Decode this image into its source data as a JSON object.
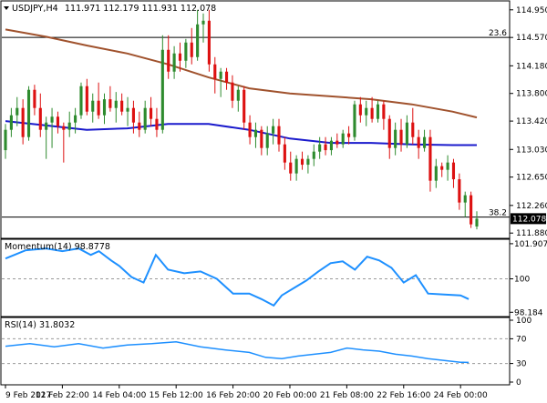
{
  "header": {
    "symbol": "USDJPY,H4",
    "ohlc": "111.971 112.179 111.931 112.078"
  },
  "colors": {
    "bull": "#2e8b2e",
    "bear": "#dd1111",
    "sma_fast": "#1a1acc",
    "sma_slow": "#a0522d",
    "momentum": "#1e90ff",
    "rsi": "#1e90ff",
    "level": "#000000",
    "grid": "#999999"
  },
  "chart_data": [
    {
      "type": "candlestick",
      "panel": "price",
      "y_ticks": [
        "114.950",
        "114.570",
        "114.180",
        "113.800",
        "113.420",
        "113.030",
        "112.650",
        "112.260",
        "111.880"
      ],
      "ylim": [
        111.82,
        115.06
      ],
      "current_price": "112.078",
      "x_tick_labels": [
        "9 Feb 2017",
        "12 Feb 22:00",
        "14 Feb 04:00",
        "15 Feb 12:00",
        "16 Feb 20:00",
        "20 Feb 00:00",
        "21 Feb 08:00",
        "22 Feb 16:00",
        "24 Feb 00:00"
      ],
      "x_tick_positions": [
        0,
        14,
        28,
        42,
        56,
        70,
        84,
        98,
        112
      ],
      "levels": [
        {
          "label": "23.6",
          "value": 114.57
        },
        {
          "label": "38.2",
          "value": 112.1
        }
      ],
      "candles": [
        {
          "o": 113.02,
          "h": 113.38,
          "l": 112.9,
          "c": 113.3
        },
        {
          "o": 113.3,
          "h": 113.6,
          "l": 113.2,
          "c": 113.5
        },
        {
          "o": 113.5,
          "h": 113.75,
          "l": 113.35,
          "c": 113.6
        },
        {
          "o": 113.6,
          "h": 113.72,
          "l": 113.1,
          "c": 113.2
        },
        {
          "o": 113.2,
          "h": 113.9,
          "l": 113.15,
          "c": 113.85
        },
        {
          "o": 113.85,
          "h": 113.92,
          "l": 113.5,
          "c": 113.6
        },
        {
          "o": 113.6,
          "h": 113.8,
          "l": 113.2,
          "c": 113.3
        },
        {
          "o": 113.3,
          "h": 113.48,
          "l": 112.9,
          "c": 113.4
        },
        {
          "o": 113.4,
          "h": 113.6,
          "l": 113.05,
          "c": 113.48
        },
        {
          "o": 113.48,
          "h": 113.55,
          "l": 113.25,
          "c": 113.35
        },
        {
          "o": 113.35,
          "h": 113.4,
          "l": 112.85,
          "c": 113.3
        },
        {
          "o": 113.3,
          "h": 113.55,
          "l": 113.2,
          "c": 113.4
        },
        {
          "o": 113.4,
          "h": 113.6,
          "l": 113.25,
          "c": 113.5
        },
        {
          "o": 113.5,
          "h": 113.95,
          "l": 113.45,
          "c": 113.9
        },
        {
          "o": 113.9,
          "h": 114.0,
          "l": 113.5,
          "c": 113.55
        },
        {
          "o": 113.55,
          "h": 113.8,
          "l": 113.4,
          "c": 113.7
        },
        {
          "o": 113.7,
          "h": 113.95,
          "l": 113.45,
          "c": 113.5
        },
        {
          "o": 113.5,
          "h": 113.8,
          "l": 113.38,
          "c": 113.72
        },
        {
          "o": 113.72,
          "h": 113.9,
          "l": 113.55,
          "c": 113.6
        },
        {
          "o": 113.6,
          "h": 113.82,
          "l": 113.4,
          "c": 113.7
        },
        {
          "o": 113.7,
          "h": 113.8,
          "l": 113.5,
          "c": 113.55
        },
        {
          "o": 113.55,
          "h": 113.75,
          "l": 113.35,
          "c": 113.6
        },
        {
          "o": 113.6,
          "h": 113.7,
          "l": 113.25,
          "c": 113.4
        },
        {
          "o": 113.4,
          "h": 113.55,
          "l": 113.2,
          "c": 113.3
        },
        {
          "o": 113.3,
          "h": 113.7,
          "l": 113.25,
          "c": 113.6
        },
        {
          "o": 113.6,
          "h": 113.75,
          "l": 113.35,
          "c": 113.45
        },
        {
          "o": 113.45,
          "h": 113.6,
          "l": 113.2,
          "c": 113.3
        },
        {
          "o": 113.3,
          "h": 114.6,
          "l": 113.25,
          "c": 114.4
        },
        {
          "o": 114.4,
          "h": 114.6,
          "l": 114.0,
          "c": 114.1
        },
        {
          "o": 114.1,
          "h": 114.45,
          "l": 114.0,
          "c": 114.35
        },
        {
          "o": 114.35,
          "h": 114.5,
          "l": 114.1,
          "c": 114.25
        },
        {
          "o": 114.25,
          "h": 114.55,
          "l": 114.15,
          "c": 114.5
        },
        {
          "o": 114.5,
          "h": 114.7,
          "l": 114.2,
          "c": 114.3
        },
        {
          "o": 114.3,
          "h": 114.95,
          "l": 114.25,
          "c": 114.75
        },
        {
          "o": 114.75,
          "h": 114.9,
          "l": 114.5,
          "c": 114.8
        },
        {
          "o": 114.8,
          "h": 114.95,
          "l": 114.1,
          "c": 114.2
        },
        {
          "o": 114.2,
          "h": 114.3,
          "l": 113.8,
          "c": 114.0
        },
        {
          "o": 114.0,
          "h": 114.15,
          "l": 113.75,
          "c": 114.1
        },
        {
          "o": 114.1,
          "h": 114.15,
          "l": 113.85,
          "c": 113.95
        },
        {
          "o": 113.95,
          "h": 114.05,
          "l": 113.6,
          "c": 113.7
        },
        {
          "o": 113.7,
          "h": 113.9,
          "l": 113.55,
          "c": 113.85
        },
        {
          "o": 113.85,
          "h": 113.9,
          "l": 113.3,
          "c": 113.4
        },
        {
          "o": 113.4,
          "h": 113.5,
          "l": 113.1,
          "c": 113.2
        },
        {
          "o": 113.2,
          "h": 113.4,
          "l": 113.05,
          "c": 113.3
        },
        {
          "o": 113.3,
          "h": 113.35,
          "l": 112.95,
          "c": 113.05
        },
        {
          "o": 113.05,
          "h": 113.35,
          "l": 112.95,
          "c": 113.25
        },
        {
          "o": 113.25,
          "h": 113.45,
          "l": 113.1,
          "c": 113.35
        },
        {
          "o": 113.35,
          "h": 113.45,
          "l": 113.0,
          "c": 113.1
        },
        {
          "o": 113.1,
          "h": 113.2,
          "l": 112.75,
          "c": 112.85
        },
        {
          "o": 112.85,
          "h": 113.0,
          "l": 112.6,
          "c": 112.7
        },
        {
          "o": 112.7,
          "h": 112.95,
          "l": 112.6,
          "c": 112.9
        },
        {
          "o": 112.9,
          "h": 113.0,
          "l": 112.75,
          "c": 112.82
        },
        {
          "o": 112.82,
          "h": 112.95,
          "l": 112.7,
          "c": 112.9
        },
        {
          "o": 112.9,
          "h": 113.1,
          "l": 112.8,
          "c": 113.0
        },
        {
          "o": 113.0,
          "h": 113.2,
          "l": 112.9,
          "c": 113.1
        },
        {
          "o": 113.1,
          "h": 113.2,
          "l": 112.95,
          "c": 113.02
        },
        {
          "o": 113.02,
          "h": 113.2,
          "l": 112.95,
          "c": 113.15
        },
        {
          "o": 113.15,
          "h": 113.25,
          "l": 113.05,
          "c": 113.1
        },
        {
          "o": 113.1,
          "h": 113.3,
          "l": 113.05,
          "c": 113.25
        },
        {
          "o": 113.25,
          "h": 113.35,
          "l": 113.1,
          "c": 113.2
        },
        {
          "o": 113.2,
          "h": 113.7,
          "l": 113.15,
          "c": 113.65
        },
        {
          "o": 113.65,
          "h": 113.75,
          "l": 113.4,
          "c": 113.5
        },
        {
          "o": 113.5,
          "h": 113.7,
          "l": 113.35,
          "c": 113.6
        },
        {
          "o": 113.6,
          "h": 113.75,
          "l": 113.4,
          "c": 113.45
        },
        {
          "o": 113.45,
          "h": 113.7,
          "l": 113.4,
          "c": 113.65
        },
        {
          "o": 113.65,
          "h": 113.7,
          "l": 113.3,
          "c": 113.45
        },
        {
          "o": 113.45,
          "h": 113.5,
          "l": 112.9,
          "c": 113.05
        },
        {
          "o": 113.05,
          "h": 113.4,
          "l": 112.95,
          "c": 113.3
        },
        {
          "o": 113.3,
          "h": 113.45,
          "l": 113.0,
          "c": 113.1
        },
        {
          "o": 113.1,
          "h": 113.5,
          "l": 113.05,
          "c": 113.4
        },
        {
          "o": 113.4,
          "h": 113.6,
          "l": 113.1,
          "c": 113.2
        },
        {
          "o": 113.2,
          "h": 113.3,
          "l": 112.9,
          "c": 113.05
        },
        {
          "o": 113.05,
          "h": 113.3,
          "l": 113.0,
          "c": 113.2
        },
        {
          "o": 113.2,
          "h": 113.3,
          "l": 112.45,
          "c": 112.6
        },
        {
          "o": 112.6,
          "h": 112.9,
          "l": 112.5,
          "c": 112.8
        },
        {
          "o": 112.8,
          "h": 112.85,
          "l": 112.65,
          "c": 112.75
        },
        {
          "o": 112.75,
          "h": 112.95,
          "l": 112.6,
          "c": 112.85
        },
        {
          "o": 112.85,
          "h": 112.9,
          "l": 112.5,
          "c": 112.62
        },
        {
          "o": 112.62,
          "h": 112.7,
          "l": 112.2,
          "c": 112.3
        },
        {
          "o": 112.3,
          "h": 112.45,
          "l": 112.1,
          "c": 112.4
        },
        {
          "o": 112.4,
          "h": 112.45,
          "l": 111.95,
          "c": 112.0
        },
        {
          "o": 111.971,
          "h": 112.179,
          "l": 111.931,
          "c": 112.078
        }
      ],
      "candle_x": [
        0,
        1,
        2,
        3,
        4,
        5,
        6,
        7,
        8,
        9,
        10,
        11,
        12,
        13,
        14,
        15,
        16,
        17,
        18,
        19,
        20,
        21,
        22,
        23,
        24,
        25,
        26,
        27,
        28,
        29,
        30,
        31,
        32,
        33,
        34,
        35,
        36,
        37,
        38,
        39,
        40,
        41,
        42,
        43,
        44,
        45,
        46,
        47,
        48,
        49,
        50,
        51,
        52,
        53,
        54,
        55,
        56,
        57,
        58,
        59,
        60,
        61,
        62,
        63,
        64,
        65,
        66,
        67,
        68,
        69,
        70,
        71,
        72,
        73,
        74,
        75,
        76,
        77,
        78,
        79,
        80,
        81
      ],
      "series": [
        {
          "kind": "sma_slow",
          "x": [
            0,
            10,
            20,
            30,
            40,
            50,
            60,
            70,
            80,
            90,
            100,
            110,
            116
          ],
          "values": [
            114.68,
            114.58,
            114.46,
            114.35,
            114.2,
            114.02,
            113.87,
            113.8,
            113.76,
            113.72,
            113.65,
            113.55,
            113.47
          ]
        },
        {
          "kind": "sma_fast",
          "x": [
            0,
            10,
            20,
            30,
            40,
            50,
            60,
            70,
            80,
            90,
            100,
            110,
            116
          ],
          "values": [
            113.42,
            113.36,
            113.3,
            113.32,
            113.38,
            113.38,
            113.3,
            113.18,
            113.12,
            113.12,
            113.1,
            113.09,
            113.09
          ]
        }
      ]
    },
    {
      "type": "line",
      "panel": "momentum",
      "label": "Momentum(14) 98.8778",
      "y_ticks": [
        "101.9073",
        "100",
        "98.184"
      ],
      "ylim": [
        98.0,
        102.1
      ],
      "reference": 100,
      "x": [
        0,
        5,
        10,
        14,
        18,
        21,
        23,
        26,
        28,
        31,
        34,
        37,
        40,
        44,
        48,
        52,
        56,
        60,
        63,
        66,
        68,
        71,
        74,
        77,
        80,
        83,
        86,
        89,
        92,
        95,
        98,
        101,
        104,
        108,
        112,
        114
      ],
      "values": [
        101.1,
        101.55,
        101.65,
        101.5,
        101.65,
        101.3,
        101.5,
        101.0,
        100.7,
        100.1,
        99.8,
        101.3,
        100.5,
        100.3,
        100.4,
        100.0,
        99.2,
        99.2,
        98.9,
        98.55,
        99.1,
        99.5,
        99.9,
        100.4,
        100.85,
        100.95,
        100.5,
        101.2,
        101.0,
        100.6,
        99.8,
        100.2,
        99.2,
        99.15,
        99.1,
        98.9
      ]
    },
    {
      "type": "line",
      "panel": "rsi",
      "label": "RSI(14) 31.8032",
      "y_ticks": [
        "100",
        "70",
        "30",
        "0"
      ],
      "ylim": [
        0,
        100
      ],
      "levels": [
        70,
        30
      ],
      "x": [
        0,
        6,
        12,
        18,
        24,
        30,
        36,
        42,
        48,
        54,
        60,
        64,
        68,
        72,
        76,
        80,
        84,
        88,
        92,
        96,
        100,
        104,
        108,
        112,
        114
      ],
      "values": [
        58,
        62,
        57,
        62,
        55,
        60,
        62,
        65,
        57,
        52,
        48,
        40,
        38,
        42,
        45,
        48,
        55,
        52,
        50,
        45,
        42,
        38,
        35,
        32,
        31.8
      ]
    }
  ]
}
